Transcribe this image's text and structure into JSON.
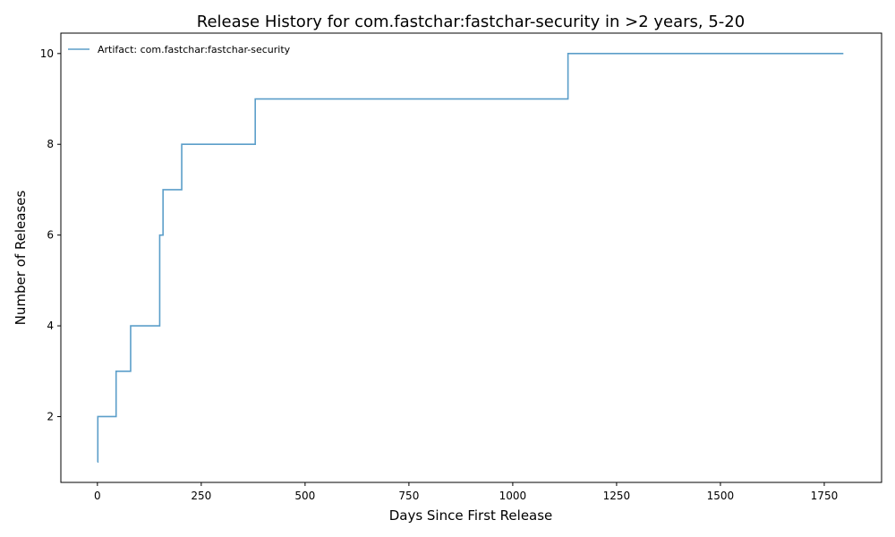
{
  "chart_data": {
    "type": "line",
    "title": "Release History for com.fastchar:fastchar-security in >2 years, 5-20",
    "xlabel": "Days Since First Release",
    "ylabel": "Number of Releases",
    "xlim": [
      -88,
      1888
    ],
    "ylim": [
      0.55,
      10.45
    ],
    "x_ticks": [
      0,
      250,
      500,
      750,
      1000,
      1250,
      1500,
      1750
    ],
    "y_ticks": [
      2,
      4,
      6,
      8,
      10
    ],
    "grid": false,
    "legend_position": "top-left",
    "step_style": "post",
    "series": [
      {
        "name": "Artifact: com.fastchar:fastchar-security",
        "color": "#5b9ec9",
        "x": [
          0,
          1,
          45,
          80,
          150,
          158,
          203,
          380,
          1133,
          1796
        ],
        "y": [
          1,
          2,
          3,
          4,
          6,
          7,
          8,
          9,
          10,
          10
        ]
      }
    ]
  }
}
